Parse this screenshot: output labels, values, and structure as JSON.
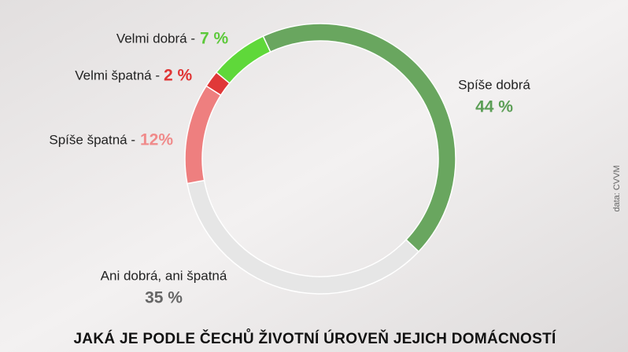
{
  "chart_data": {
    "type": "donut",
    "title": "JAKÁ JE PODLE ČECHŮ ŽIVOTNÍ ÚROVEŇ JEJICH DOMÁCNOSTÍ",
    "source": "data: CVVM",
    "categories": [
      "Spíše dobrá",
      "Ani dobrá, ani špatná",
      "Spíše špatná -",
      "Velmi špatná -",
      "Velmi dobrá -"
    ],
    "values": [
      44,
      35,
      12,
      2,
      7
    ],
    "value_labels": [
      "44 %",
      "35 %",
      "12%",
      "2 %",
      "7 %"
    ],
    "colors": [
      "#69a65f",
      "#e6e6e6",
      "#ee7f7f",
      "#e03838",
      "#5fd83a"
    ],
    "label_colors": [
      "#5b9e55",
      "#666666",
      "#f08a8a",
      "#e03434",
      "#5cc93a"
    ]
  }
}
